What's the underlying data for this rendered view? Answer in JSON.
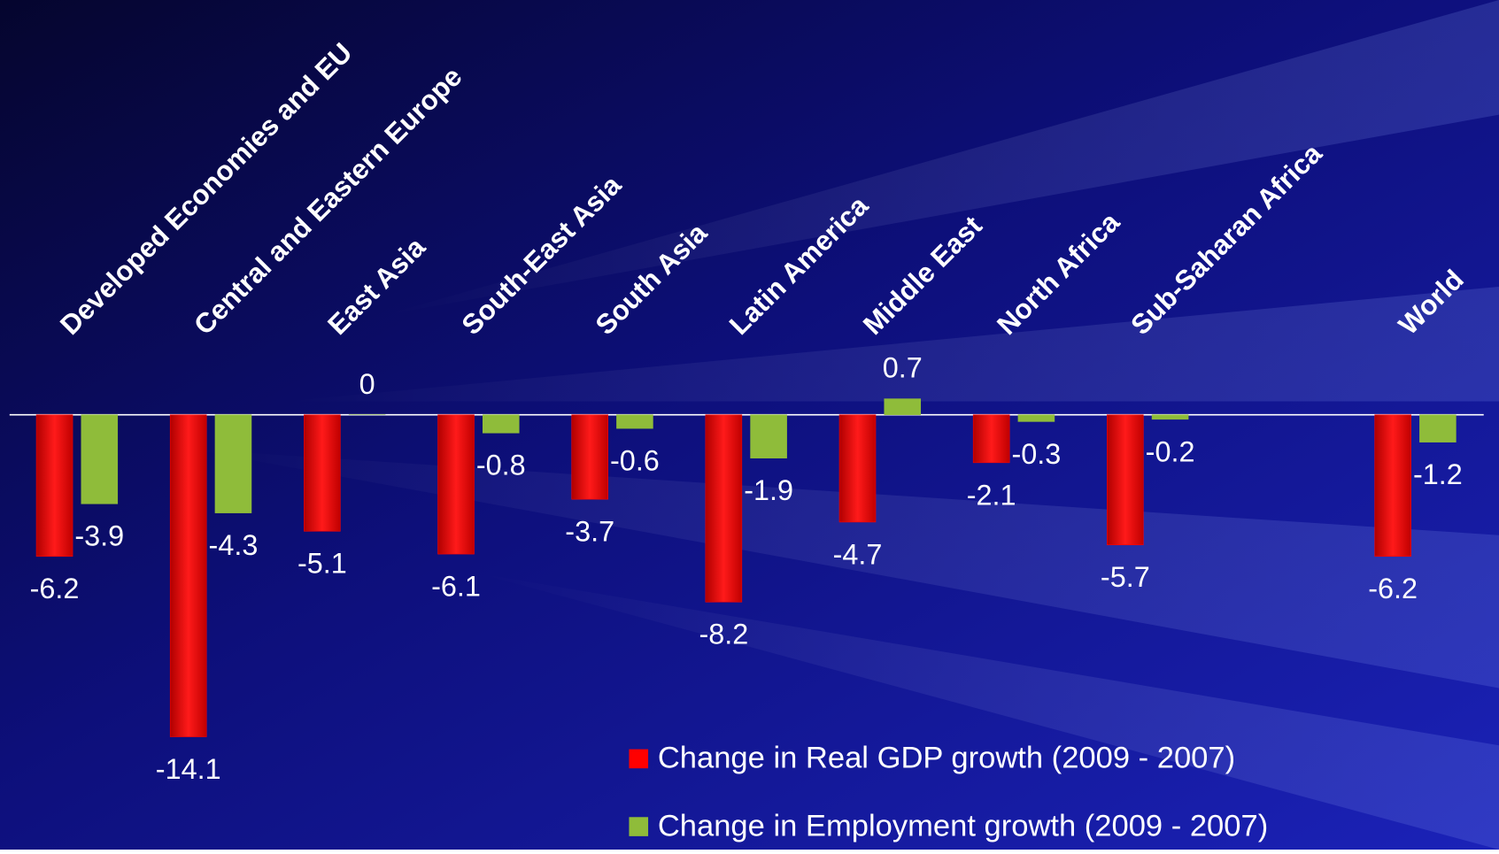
{
  "chart_data": {
    "type": "bar",
    "categories": [
      "Developed Economies and EU",
      "Central and Eastern Europe",
      "East Asia",
      "South-East Asia",
      "South Asia",
      "Latin America",
      "Middle East",
      "North Africa",
      "Sub-Saharan Africa",
      null,
      "World"
    ],
    "series": [
      {
        "name": "Change in Real GDP growth (2009 - 2007)",
        "color": "#ff0000",
        "values": [
          -6.2,
          -14.1,
          -5.1,
          -6.1,
          -3.7,
          -8.2,
          -4.7,
          -2.1,
          -5.7,
          null,
          -6.2
        ]
      },
      {
        "name": "Change in Employment growth (2009 - 2007)",
        "color": "#8fbc3a",
        "values": [
          -3.9,
          -4.3,
          0,
          -0.8,
          -0.6,
          -1.9,
          0.7,
          -0.3,
          -0.2,
          null,
          -1.2
        ]
      }
    ],
    "legend": "bottom"
  }
}
